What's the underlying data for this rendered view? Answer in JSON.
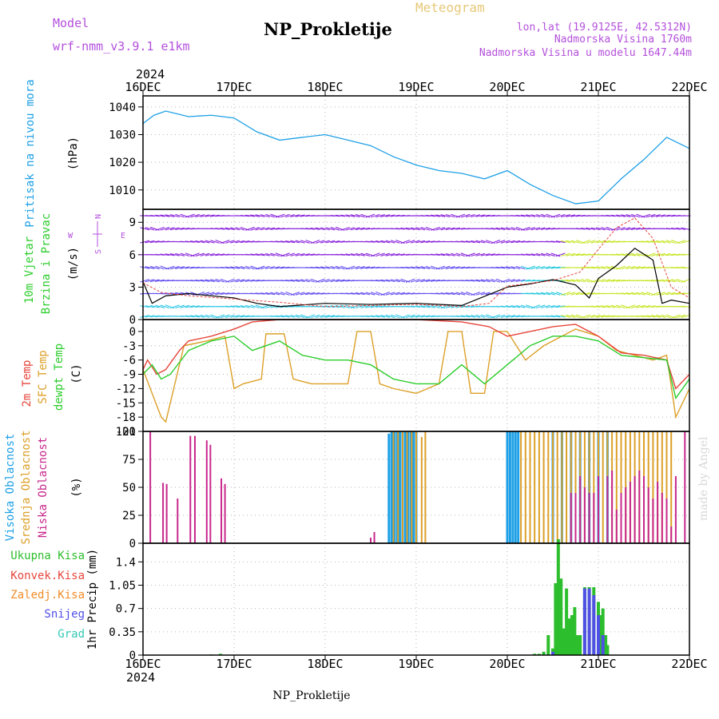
{
  "header": {
    "model_label": "Model",
    "model_value": "wrf-nmm_v3.9.1  e1km",
    "title": "NP_Prokletije",
    "subtitle": "Meteogram",
    "lonlat": "lon,lat (19.9125E, 42.5312N)",
    "elevation": "Nadmorska Visina 1760m",
    "model_elevation": "Nadmorska Visina u modelu 1647.44m",
    "footer": "NP_Prokletije",
    "credit": "made by Angel",
    "year_top": "2024",
    "year_bottom": "2024"
  },
  "colors": {
    "pressure": "#1ea0e6",
    "temp2m": "#e6463c",
    "sfc_temp": "#dca028",
    "dewpoint": "#2dcd2d",
    "cloud_high": "#1ea0e6",
    "cloud_mid": "#dca028",
    "cloud_low": "#c8288c",
    "precip_total": "#2dbe2d",
    "precip_conv": "#e6463c",
    "precip_frz": "#f08c28",
    "precip_snow": "#5050e6",
    "precip_hail": "#32c8b4",
    "label_purple": "#b450dc"
  },
  "chart_data": [
    {
      "id": "pressure",
      "type": "line",
      "ylabel": "Pritisak na nivou mora",
      "unit": "(hPa)",
      "ylim": [
        1003,
        1044
      ],
      "yticks": [
        "1040",
        "1030",
        "1020",
        "1010"
      ],
      "ytick_values": [
        1040,
        1030,
        1020,
        1010
      ],
      "x": [
        0,
        0.12,
        0.25,
        0.5,
        0.75,
        1.0,
        1.25,
        1.5,
        1.75,
        2.0,
        2.25,
        2.5,
        2.75,
        3.0,
        3.25,
        3.5,
        3.75,
        4.0,
        4.25,
        4.5,
        4.75,
        5.0,
        5.25,
        5.5,
        5.75,
        6.0
      ],
      "values": [
        1034,
        1037,
        1038.5,
        1036.5,
        1037,
        1036,
        1031,
        1028,
        1029,
        1030,
        1028,
        1026,
        1022,
        1019,
        1017,
        1016,
        1014,
        1017,
        1012,
        1008,
        1005,
        1006,
        1014,
        1021,
        1029,
        1025
      ]
    },
    {
      "id": "wind",
      "type": "line",
      "ylabel": "10m Vjetar",
      "ylabel2": "Brzina i Pravac",
      "unit": "(m/s)",
      "compass": {
        "n": "N",
        "s": "S",
        "e": "E",
        "w": "W"
      },
      "ylim": [
        0,
        10.2
      ],
      "yticks": [
        "9",
        "6",
        "3",
        "0"
      ],
      "ytick_values": [
        9,
        6,
        3,
        0
      ],
      "series": [
        {
          "name": "speed",
          "x": [
            0,
            0.1,
            0.25,
            0.5,
            1.0,
            1.25,
            1.5,
            2.0,
            2.5,
            3.0,
            3.5,
            4.0,
            4.25,
            4.5,
            4.75,
            4.9,
            5.0,
            5.2,
            5.4,
            5.6,
            5.7,
            5.8,
            6.0
          ],
          "values": [
            3.5,
            1.5,
            2.2,
            2.4,
            2.0,
            1.5,
            1.2,
            1.5,
            1.4,
            1.5,
            1.3,
            3.0,
            3.3,
            3.7,
            3.2,
            2.0,
            3.8,
            5.0,
            6.6,
            5.5,
            1.5,
            1.8,
            1.5
          ]
        },
        {
          "name": "gust",
          "x": [
            0,
            0.2,
            0.5,
            1.0,
            1.5,
            2.0,
            2.5,
            3.0,
            3.5,
            3.8,
            4.0,
            4.5,
            4.8,
            5.0,
            5.2,
            5.4,
            5.6,
            5.8,
            6.0
          ],
          "values": [
            3.4,
            2.5,
            2.2,
            1.9,
            1.6,
            1.2,
            1.3,
            1.4,
            1.2,
            1.5,
            3.1,
            3.6,
            4.4,
            6.5,
            8.5,
            9.4,
            7.5,
            3.0,
            2.0
          ]
        }
      ]
    },
    {
      "id": "temperature",
      "type": "line",
      "ylabels": [
        "2m Temp",
        "SFC Temp",
        "dewpt Temp"
      ],
      "unit": "(C)",
      "ylim": [
        -21,
        2.5
      ],
      "yticks": [
        "0",
        "-3",
        "-6",
        "-9",
        "-12",
        "-15",
        "-18",
        "-21"
      ],
      "ytick_values": [
        0,
        -3,
        -6,
        -9,
        -12,
        -15,
        -18,
        -21
      ],
      "series": [
        {
          "name": "2m Temp",
          "x": [
            0,
            0.05,
            0.15,
            0.25,
            0.4,
            0.5,
            0.75,
            1.0,
            1.2,
            1.5,
            2.0,
            2.5,
            3.0,
            3.5,
            3.8,
            4.0,
            4.25,
            4.5,
            4.75,
            5.0,
            5.25,
            5.5,
            5.75,
            5.85,
            6.0
          ],
          "values": [
            -8,
            -6,
            -9,
            -8,
            -4,
            -2,
            -1,
            0.5,
            2,
            3,
            3,
            3,
            3,
            2,
            1,
            -1,
            0,
            1,
            1.5,
            -1,
            -4.5,
            -5,
            -6,
            -12,
            -9
          ]
        },
        {
          "name": "SFC Temp",
          "x": [
            0,
            0.1,
            0.2,
            0.25,
            0.45,
            0.7,
            0.9,
            1.0,
            1.1,
            1.3,
            1.35,
            1.55,
            1.65,
            1.85,
            2.25,
            2.35,
            2.5,
            2.6,
            2.75,
            3.0,
            3.25,
            3.35,
            3.5,
            3.6,
            3.75,
            3.85,
            4.0,
            4.2,
            4.4,
            4.75,
            5.0,
            5.2,
            5.4,
            5.6,
            5.75,
            5.85,
            6.0
          ],
          "values": [
            -8,
            -13,
            -18,
            -19,
            -3,
            -2,
            -1,
            -12,
            -11,
            -10,
            -0.5,
            -0.5,
            -10,
            -11,
            -11,
            0,
            0,
            -11,
            -12,
            -13,
            -11,
            0,
            0,
            -13,
            -13,
            0,
            0,
            -6,
            -3,
            0.5,
            -1,
            -4,
            -5,
            -6,
            -5,
            -18,
            -12
          ]
        },
        {
          "name": "dewpt Temp",
          "x": [
            0,
            0.1,
            0.2,
            0.3,
            0.5,
            0.75,
            1.0,
            1.2,
            1.5,
            1.75,
            2.0,
            2.25,
            2.5,
            2.75,
            3.0,
            3.25,
            3.5,
            3.75,
            4.0,
            4.25,
            4.5,
            4.75,
            5.0,
            5.25,
            5.5,
            5.75,
            5.85,
            6.0
          ],
          "values": [
            -9,
            -7,
            -10,
            -9,
            -4,
            -2,
            -1,
            -4,
            -2,
            -5,
            -6,
            -6,
            -7,
            -10,
            -11,
            -11,
            -7,
            -11,
            -7,
            -3,
            -1,
            -1,
            -2,
            -5,
            -5.5,
            -6,
            -14,
            -10
          ]
        }
      ]
    },
    {
      "id": "clouds",
      "type": "bar",
      "ylabels": [
        "Visoka Oblacnost",
        "Srednja Oblacnost",
        "Niska Oblacnost"
      ],
      "unit": "(%)",
      "ylim": [
        0,
        100
      ],
      "yticks": [
        "100",
        "75",
        "50",
        "25",
        "0"
      ],
      "ytick_values": [
        100,
        75,
        50,
        25,
        0
      ],
      "series": [
        {
          "name": "Visoka Oblacnost",
          "x": [
            2.7,
            2.73,
            2.76,
            2.79,
            2.82,
            2.85,
            2.88,
            2.91,
            2.94,
            2.97,
            3.0,
            4.0,
            4.03,
            4.06,
            4.09,
            4.12,
            4.5,
            4.6,
            4.7,
            4.8,
            4.9,
            5.0,
            5.1
          ],
          "values": [
            98,
            100,
            100,
            100,
            100,
            100,
            100,
            100,
            100,
            100,
            100,
            100,
            100,
            100,
            100,
            100,
            100,
            100,
            100,
            100,
            100,
            100,
            100
          ]
        },
        {
          "name": "Srednja Oblacnost",
          "x": [
            2.75,
            2.8,
            2.85,
            2.9,
            2.95,
            3.0,
            3.06,
            3.1,
            4.15,
            4.2,
            4.25,
            4.3,
            4.35,
            4.4,
            4.45,
            4.5,
            4.55,
            4.6,
            4.65,
            4.7,
            4.75,
            4.8,
            4.85,
            4.9,
            4.95,
            5.0,
            5.05,
            5.1,
            5.15,
            5.2,
            5.25,
            5.3,
            5.35,
            5.4,
            5.45,
            5.5,
            5.55,
            5.6,
            5.65,
            5.7,
            5.75,
            5.8
          ],
          "values": [
            100,
            100,
            100,
            100,
            100,
            100,
            95,
            100,
            100,
            100,
            100,
            100,
            100,
            100,
            100,
            100,
            100,
            100,
            100,
            100,
            100,
            100,
            100,
            100,
            100,
            100,
            100,
            100,
            100,
            100,
            100,
            100,
            100,
            100,
            100,
            100,
            100,
            100,
            100,
            100,
            100,
            100
          ]
        },
        {
          "name": "Niska Oblacnost",
          "x": [
            0.08,
            0.22,
            0.26,
            0.38,
            0.52,
            0.57,
            0.7,
            0.74,
            0.86,
            0.9,
            2.5,
            2.54,
            4.7,
            4.75,
            4.8,
            4.85,
            4.9,
            4.95,
            5.0,
            5.1,
            5.15,
            5.2,
            5.25,
            5.3,
            5.35,
            5.4,
            5.45,
            5.5,
            5.55,
            5.6,
            5.65,
            5.7,
            5.75,
            5.8,
            5.85,
            5.95
          ],
          "values": [
            100,
            54,
            53,
            40,
            96,
            96,
            92,
            88,
            58,
            53,
            5,
            10,
            45,
            45,
            60,
            50,
            45,
            45,
            60,
            60,
            65,
            30,
            45,
            50,
            55,
            60,
            65,
            60,
            50,
            40,
            55,
            45,
            40,
            15,
            60,
            100
          ]
        }
      ]
    },
    {
      "id": "precip",
      "type": "bar",
      "ylabel": "1hr Precip (mm)",
      "legend": [
        "Ukupna Kisa",
        "Konvek.Kisa",
        "Zaledj.Kisa",
        "Snijeg",
        "Grad"
      ],
      "ylim": [
        0,
        1.68
      ],
      "yticks": [
        "1.4",
        "1.05",
        "0.7",
        "0.35",
        "0"
      ],
      "ytick_values": [
        1.4,
        1.05,
        0.7,
        0.35,
        0
      ],
      "series": [
        {
          "name": "Ukupna Kisa",
          "x": [
            0.75,
            0.85,
            4.3,
            4.35,
            4.4,
            4.45,
            4.5,
            4.53,
            4.56,
            4.59,
            4.62,
            4.65,
            4.68,
            4.71,
            4.74,
            4.77,
            4.8,
            4.85,
            4.9,
            4.95,
            5.0,
            5.02,
            5.05,
            5.08,
            5.1
          ],
          "values": [
            0.01,
            0.02,
            0.02,
            0.02,
            0.05,
            0.3,
            0.1,
            1.08,
            1.74,
            1.15,
            0.4,
            1.0,
            0.55,
            0.6,
            0.72,
            0.3,
            0.3,
            1.02,
            1.02,
            1.02,
            0.8,
            0.6,
            0.7,
            0.3,
            0.15
          ]
        },
        {
          "name": "Snijeg",
          "x": [
            4.5,
            4.85,
            4.9,
            4.95,
            5.0,
            5.05
          ],
          "values": [
            0.05,
            1.0,
            1.0,
            0.9,
            0.6,
            0.3
          ]
        }
      ]
    }
  ],
  "xaxis": {
    "labels": [
      "16DEC",
      "17DEC",
      "18DEC",
      "19DEC",
      "20DEC",
      "21DEC",
      "22DEC"
    ],
    "days": 6
  }
}
